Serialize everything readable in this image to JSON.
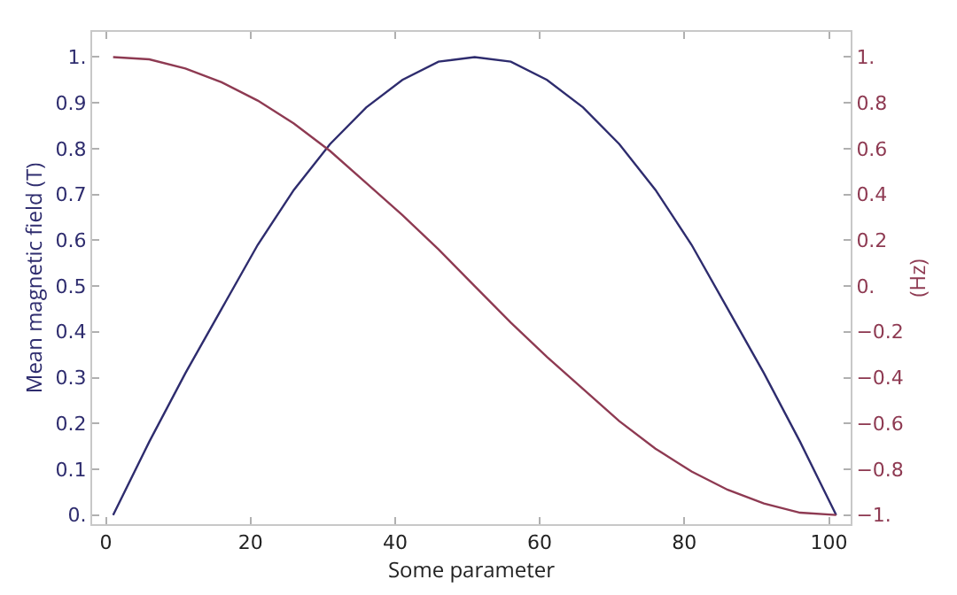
{
  "chart_data": {
    "type": "line",
    "xlabel": "Some parameter",
    "ylabel": "Mean magnetic field (T)",
    "y2label": "(Hz)",
    "x": [
      1,
      6,
      11,
      16,
      21,
      26,
      31,
      36,
      41,
      46,
      51,
      56,
      61,
      66,
      71,
      76,
      81,
      86,
      91,
      96,
      101
    ],
    "series": [
      {
        "color": "#2e2c6e",
        "values": [
          0,
          0.16,
          0.31,
          0.45,
          0.59,
          0.71,
          0.81,
          0.89,
          0.95,
          0.99,
          1,
          0.99,
          0.95,
          0.89,
          0.81,
          0.71,
          0.59,
          0.45,
          0.31,
          0.16,
          0
        ]
      },
      {
        "color": "#8e3a52",
        "axis": "y2",
        "values": [
          1,
          0.99,
          0.95,
          0.89,
          0.81,
          0.71,
          0.59,
          0.45,
          0.31,
          0.16,
          0,
          -0.16,
          -0.31,
          -0.45,
          -0.59,
          -0.71,
          -0.81,
          -0.89,
          -0.95,
          -0.99,
          -1
        ]
      }
    ],
    "xlim": [
      -1.9,
      103
    ],
    "xticks": [
      0,
      20,
      40,
      60,
      80,
      100
    ],
    "ylim": [
      -0.02,
      1.055
    ],
    "yticks": [
      {
        "value": 0,
        "label": "0."
      },
      0.1,
      0.2,
      0.3,
      0.4,
      0.5,
      0.6,
      0.7,
      0.8,
      0.9,
      {
        "value": 1,
        "label": "1."
      }
    ],
    "y2lim": [
      -1.04,
      1.11
    ],
    "y2ticks": [
      {
        "value": -1,
        "label": "−1."
      },
      {
        "value": -0.8,
        "label": "−0.8"
      },
      {
        "value": -0.6,
        "label": "−0.6"
      },
      {
        "value": -0.4,
        "label": "−0.4"
      },
      {
        "value": -0.2,
        "label": "−0.2"
      },
      {
        "value": 0,
        "label": "0."
      },
      0.2,
      0.4,
      0.6,
      0.8,
      {
        "value": 1,
        "label": "1."
      }
    ],
    "grid": false,
    "marker": "none",
    "line_style": "solid"
  }
}
